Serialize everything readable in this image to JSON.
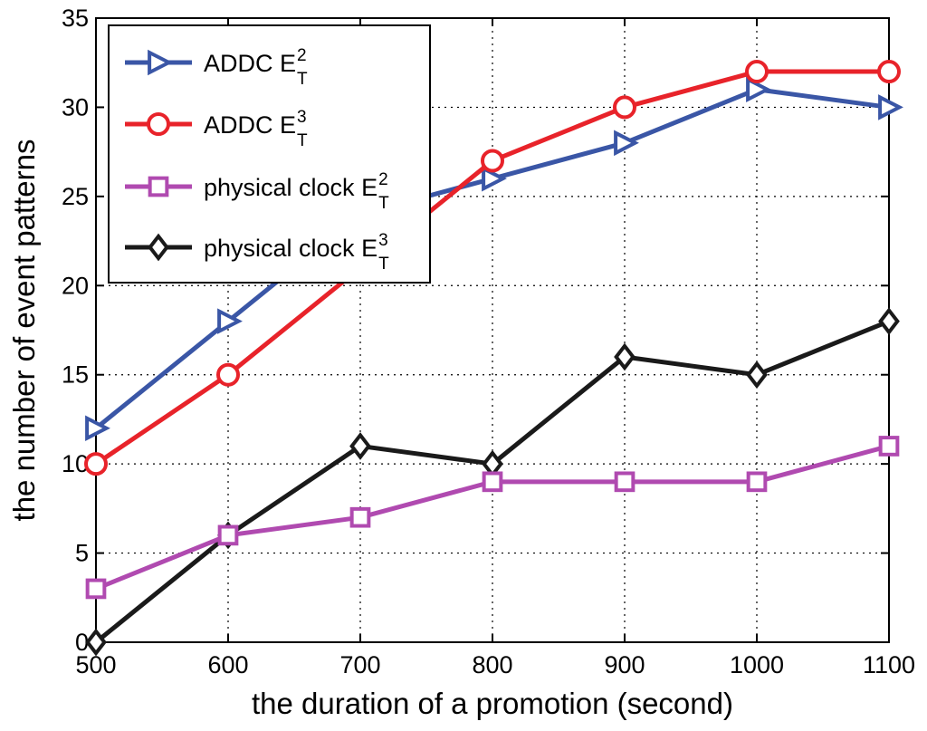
{
  "chart_data": {
    "type": "line",
    "xlabel": "the duration of a promotion (second)",
    "ylabel": "the number of event patterns",
    "xlim": [
      500,
      1100
    ],
    "ylim": [
      0,
      35
    ],
    "xticks": [
      500,
      600,
      700,
      800,
      900,
      1000,
      1100
    ],
    "yticks": [
      0,
      5,
      10,
      15,
      20,
      25,
      30,
      35
    ],
    "grid": true,
    "legend_position": "top-left",
    "x": [
      500,
      600,
      700,
      800,
      900,
      1000,
      1100
    ],
    "series": [
      {
        "name": "ADDC E",
        "sup": "2",
        "sub": "T",
        "color": "#3a56a6",
        "marker": "triangle-right",
        "values": [
          12,
          18,
          24,
          26,
          28,
          31,
          30
        ]
      },
      {
        "name": "ADDC E",
        "sup": "3",
        "sub": "T",
        "color": "#e8232a",
        "marker": "circle",
        "values": [
          10,
          15,
          21,
          27,
          30,
          32,
          32
        ]
      },
      {
        "name": "physical clock E",
        "sup": "2",
        "sub": "T",
        "color": "#b04ab0",
        "marker": "square",
        "values": [
          3,
          6,
          7,
          9,
          9,
          9,
          11
        ]
      },
      {
        "name": "physical clock E",
        "sup": "3",
        "sub": "T",
        "color": "#1a1a1a",
        "marker": "diamond",
        "values": [
          0,
          6,
          11,
          10,
          16,
          15,
          18
        ]
      }
    ]
  }
}
